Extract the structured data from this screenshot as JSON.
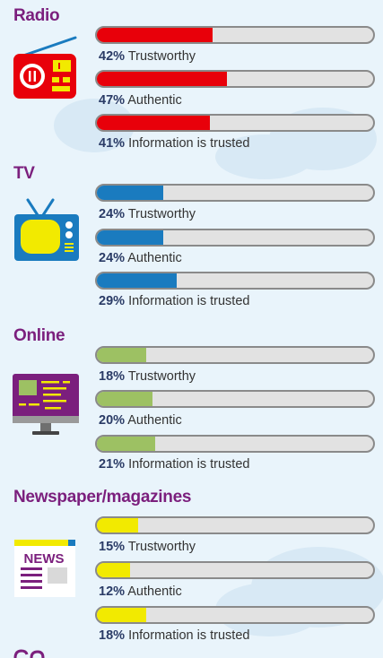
{
  "colors": {
    "radio": "#e8000a",
    "tv": "#1a7bbf",
    "online": "#9dc163",
    "newspaper": "#f2ea00",
    "heading": "#7b1f7d",
    "percent_text": "#2a3b66"
  },
  "chart_data": [
    {
      "type": "bar",
      "title": "Radio",
      "icon": "radio-icon",
      "categories": [
        "Trustworthy",
        "Authentic",
        "Information is trusted"
      ],
      "values": [
        42,
        47,
        41
      ],
      "ylim": [
        0,
        100
      ]
    },
    {
      "type": "bar",
      "title": "TV",
      "icon": "tv-icon",
      "categories": [
        "Trustworthy",
        "Authentic",
        "Information is trusted"
      ],
      "values": [
        24,
        24,
        29
      ],
      "ylim": [
        0,
        100
      ]
    },
    {
      "type": "bar",
      "title": "Online",
      "icon": "computer-monitor-icon",
      "categories": [
        "Trustworthy",
        "Authentic",
        "Information is trusted"
      ],
      "values": [
        18,
        20,
        21
      ],
      "ylim": [
        0,
        100
      ]
    },
    {
      "type": "bar",
      "title": "Newspaper/magazines",
      "icon": "newspaper-icon",
      "icon_text": "NEWS",
      "categories": [
        "Trustworthy",
        "Authentic",
        "Information is trusted"
      ],
      "values": [
        15,
        12,
        18
      ],
      "ylim": [
        0,
        100
      ]
    }
  ]
}
